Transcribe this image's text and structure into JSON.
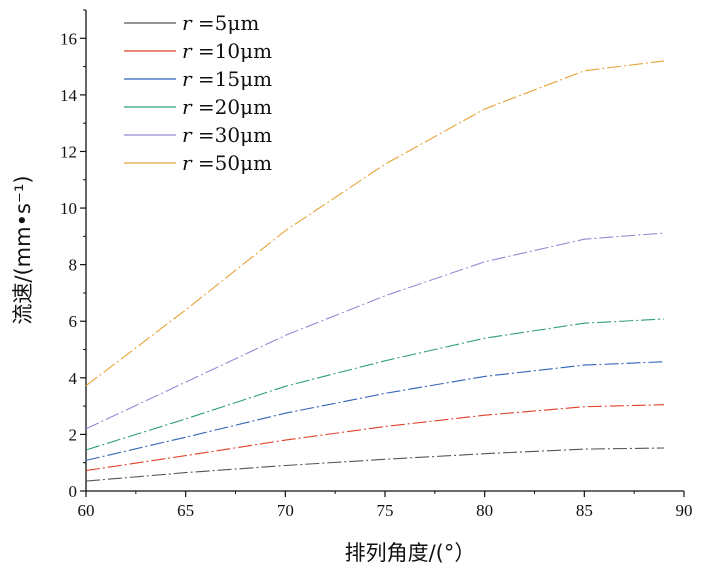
{
  "chart_data": {
    "type": "line",
    "title": "",
    "xlabel": "排列角度/(°）",
    "ylabel": "流速/(mm•s⁻¹)",
    "xlim": [
      60,
      90
    ],
    "ylim": [
      0,
      17
    ],
    "x_ticks": [
      60,
      65,
      70,
      75,
      80,
      85,
      90
    ],
    "x_tick_labels": [
      "60",
      "65",
      "70",
      "75",
      "80",
      "85",
      "90"
    ],
    "y_ticks": [
      0,
      2,
      4,
      6,
      8,
      10,
      12,
      14,
      16
    ],
    "y_tick_labels": [
      "0",
      "2",
      "4",
      "6",
      "8",
      "10",
      "12",
      "14",
      "16"
    ],
    "grid": false,
    "legend_position": "top-left",
    "x": [
      60,
      65,
      70,
      75,
      80,
      85,
      89
    ],
    "series": [
      {
        "name": "r =5μm",
        "label_var": "r",
        "label_rest": " =5μm",
        "color": "#555555",
        "values": [
          0.35,
          0.65,
          0.9,
          1.12,
          1.32,
          1.48,
          1.52
        ]
      },
      {
        "name": "r =10μm",
        "label_var": "r",
        "label_rest": " =10μm",
        "color": "#e0402a",
        "values": [
          0.72,
          1.25,
          1.8,
          2.28,
          2.68,
          2.98,
          3.05
        ]
      },
      {
        "name": "r =15μm",
        "label_var": "r",
        "label_rest": " =15μm",
        "color": "#2f63b8",
        "values": [
          1.08,
          1.9,
          2.75,
          3.45,
          4.05,
          4.45,
          4.57
        ]
      },
      {
        "name": "r =20μm",
        "label_var": "r",
        "label_rest": " =20μm",
        "color": "#2e9e7a",
        "values": [
          1.45,
          2.55,
          3.7,
          4.6,
          5.4,
          5.93,
          6.08
        ]
      },
      {
        "name": "r =30μm",
        "label_var": "r",
        "label_rest": " =30μm",
        "color": "#9b87d4",
        "values": [
          2.2,
          3.85,
          5.5,
          6.9,
          8.1,
          8.9,
          9.12
        ]
      },
      {
        "name": "r =50μm",
        "label_var": "r",
        "label_rest": " =50μm",
        "color": "#e8a23c",
        "values": [
          3.72,
          6.4,
          9.2,
          11.55,
          13.5,
          14.85,
          15.2
        ]
      }
    ]
  }
}
